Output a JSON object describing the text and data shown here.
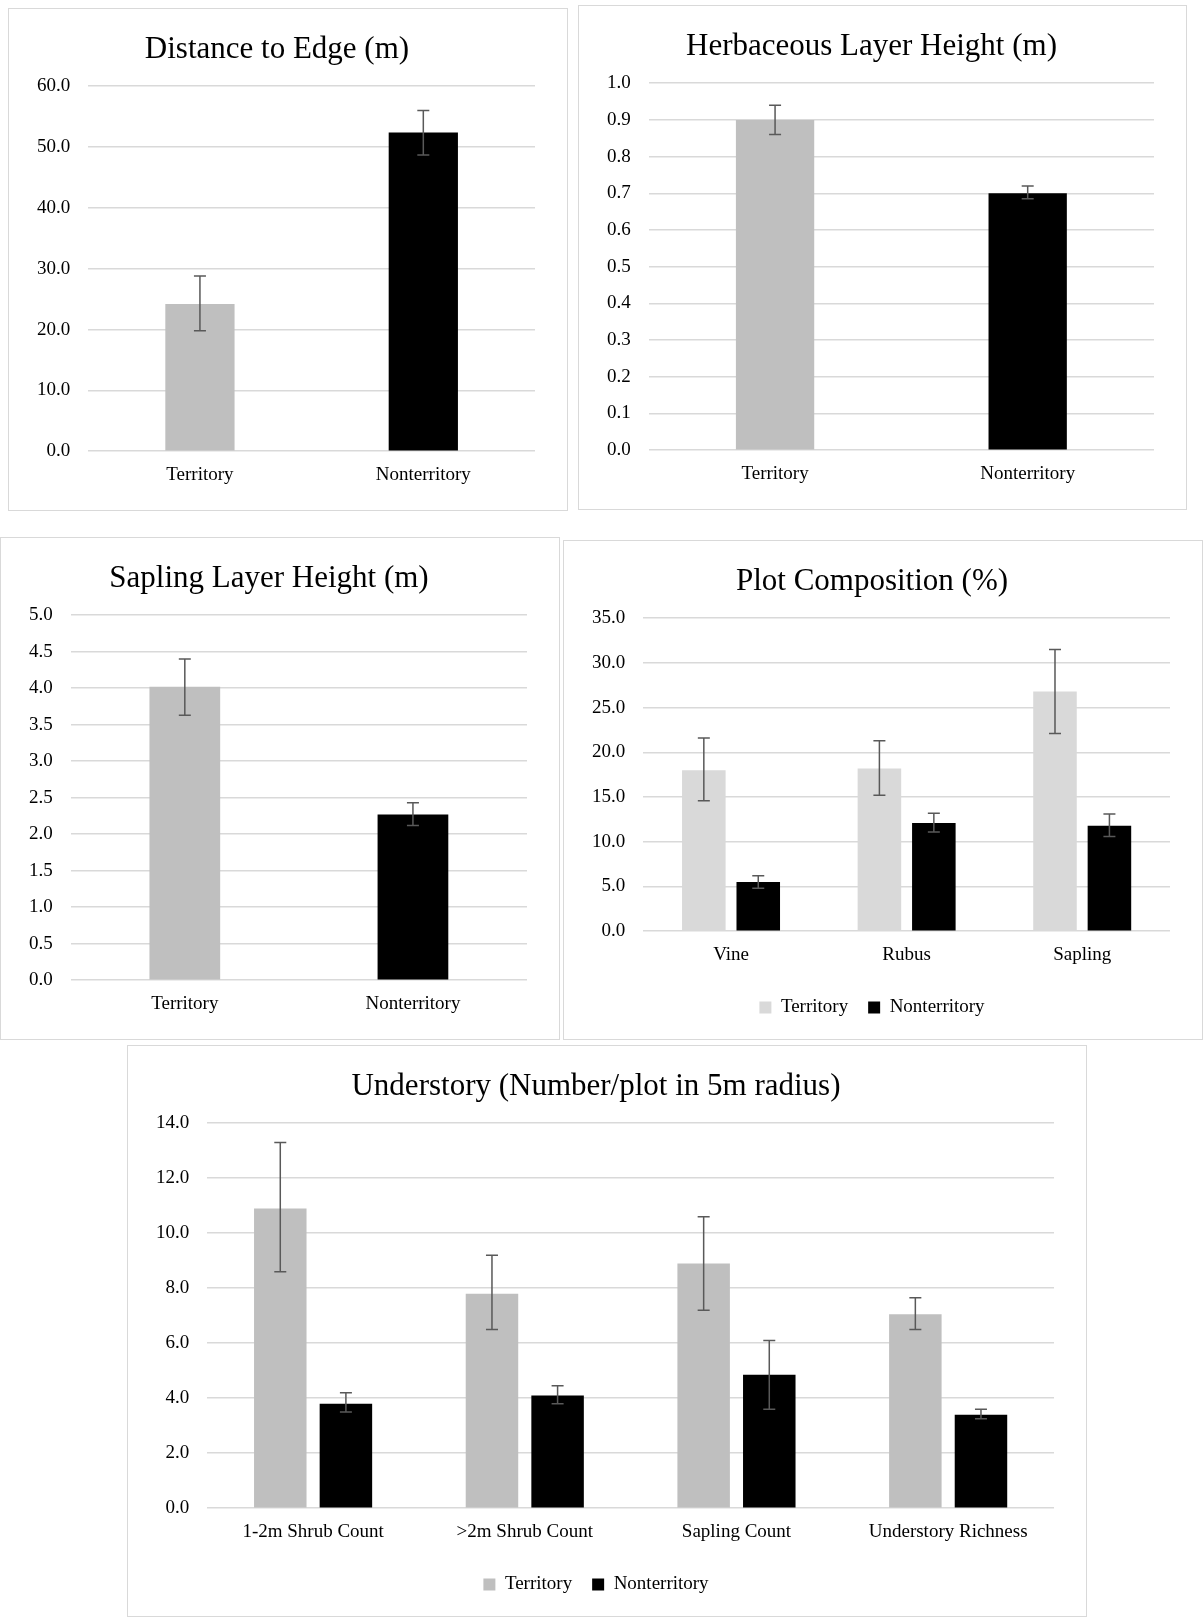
{
  "chart_data": [
    {
      "type": "bar",
      "title": "Distance to Edge (m)",
      "categories": [
        "Territory",
        "Nonterritory"
      ],
      "values": [
        24.2,
        52.4
      ],
      "colors": [
        "#bfbfbf",
        "#000000"
      ],
      "errors": [
        [
          19.8,
          28.8
        ],
        [
          48.7,
          56.0
        ]
      ],
      "ylim": [
        0,
        60
      ],
      "yticks": [
        {
          "value": 0,
          "label": "0.0"
        },
        {
          "value": 10,
          "label": "10.0"
        },
        {
          "value": 20,
          "label": "20.0"
        },
        {
          "value": 30,
          "label": "30.0"
        },
        {
          "value": 40,
          "label": "40.0"
        },
        {
          "value": 50,
          "label": "50.0"
        },
        {
          "value": 60,
          "label": "60.0"
        }
      ],
      "grid": "y",
      "legend": false
    },
    {
      "type": "bar",
      "title": "Herbaceous Layer Height (m)",
      "categories": [
        "Territory",
        "Nonterritory"
      ],
      "values": [
        0.9,
        0.7
      ],
      "colors": [
        "#bfbfbf",
        "#000000"
      ],
      "errors": [
        [
          0.86,
          0.94
        ],
        [
          0.685,
          0.72
        ]
      ],
      "ylim": [
        0,
        1
      ],
      "yticks": [
        {
          "value": 0,
          "label": "0.0"
        },
        {
          "value": 0.1,
          "label": "0.1"
        },
        {
          "value": 0.2,
          "label": "0.2"
        },
        {
          "value": 0.3,
          "label": "0.3"
        },
        {
          "value": 0.4,
          "label": "0.4"
        },
        {
          "value": 0.5,
          "label": "0.5"
        },
        {
          "value": 0.6,
          "label": "0.6"
        },
        {
          "value": 0.7,
          "label": "0.7"
        },
        {
          "value": 0.8,
          "label": "0.8"
        },
        {
          "value": 0.9,
          "label": "0.9"
        },
        {
          "value": 1,
          "label": "1.0"
        }
      ],
      "grid": "y",
      "legend": false
    },
    {
      "type": "bar",
      "title": "Sapling Layer Height (m)",
      "categories": [
        "Territory",
        "Nonterritory"
      ],
      "values": [
        4.02,
        2.27
      ],
      "colors": [
        "#bfbfbf",
        "#000000"
      ],
      "errors": [
        [
          3.63,
          4.4
        ],
        [
          2.12,
          2.43
        ]
      ],
      "ylim": [
        0,
        5
      ],
      "yticks": [
        {
          "value": 0,
          "label": "0.0"
        },
        {
          "value": 0.5,
          "label": "0.5"
        },
        {
          "value": 1,
          "label": "1.0"
        },
        {
          "value": 1.5,
          "label": "1.5"
        },
        {
          "value": 2,
          "label": "2.0"
        },
        {
          "value": 2.5,
          "label": "2.5"
        },
        {
          "value": 3,
          "label": "3.0"
        },
        {
          "value": 3.5,
          "label": "3.5"
        },
        {
          "value": 4,
          "label": "4.0"
        },
        {
          "value": 4.5,
          "label": "4.5"
        },
        {
          "value": 5,
          "label": "5.0"
        }
      ],
      "grid": "y",
      "legend": false
    },
    {
      "type": "bar",
      "title": "Plot Composition (%)",
      "categories": [
        "Vine",
        "Rubus",
        "Sapling"
      ],
      "series": [
        {
          "name": "Territory",
          "color": "#d9d9d9",
          "values": [
            18.0,
            18.2,
            26.8
          ],
          "errors": [
            [
              14.6,
              21.6
            ],
            [
              15.2,
              21.3
            ],
            [
              22.1,
              31.5
            ]
          ]
        },
        {
          "name": "Nonterritory",
          "color": "#000000",
          "values": [
            5.5,
            12.1,
            11.8
          ],
          "errors": [
            [
              4.8,
              6.2
            ],
            [
              11.1,
              13.2
            ],
            [
              10.6,
              13.1
            ]
          ]
        }
      ],
      "ylim": [
        0,
        35
      ],
      "yticks": [
        {
          "value": 0,
          "label": "0.0"
        },
        {
          "value": 5,
          "label": "5.0"
        },
        {
          "value": 10,
          "label": "10.0"
        },
        {
          "value": 15,
          "label": "15.0"
        },
        {
          "value": 20,
          "label": "20.0"
        },
        {
          "value": 25,
          "label": "25.0"
        },
        {
          "value": 30,
          "label": "30.0"
        },
        {
          "value": 35,
          "label": "35.0"
        }
      ],
      "grid": "y",
      "legend": "bottom"
    },
    {
      "type": "bar",
      "title": "Understory (Number/plot in 5m radius)",
      "categories": [
        "1-2m Shrub Count",
        ">2m Shrub Count",
        "Sapling Count",
        "Understory Richness"
      ],
      "series": [
        {
          "name": "Territory",
          "color": "#bfbfbf",
          "values": [
            10.9,
            7.8,
            8.9,
            7.05
          ],
          "errors": [
            [
              8.6,
              13.3
            ],
            [
              6.5,
              9.2
            ],
            [
              7.2,
              10.6
            ],
            [
              6.5,
              7.65
            ]
          ]
        },
        {
          "name": "Nonterritory",
          "color": "#000000",
          "values": [
            3.8,
            4.1,
            4.85,
            3.4
          ],
          "errors": [
            [
              3.5,
              4.2
            ],
            [
              3.8,
              4.45
            ],
            [
              3.6,
              6.1
            ],
            [
              3.25,
              3.6
            ]
          ]
        }
      ],
      "ylim": [
        0,
        14
      ],
      "yticks": [
        {
          "value": 0,
          "label": "0.0"
        },
        {
          "value": 2,
          "label": "2.0"
        },
        {
          "value": 4,
          "label": "4.0"
        },
        {
          "value": 6,
          "label": "6.0"
        },
        {
          "value": 8,
          "label": "8.0"
        },
        {
          "value": 10,
          "label": "10.0"
        },
        {
          "value": 12,
          "label": "12.0"
        },
        {
          "value": 14,
          "label": "14.0"
        }
      ],
      "grid": "y",
      "legend": "bottom"
    }
  ]
}
